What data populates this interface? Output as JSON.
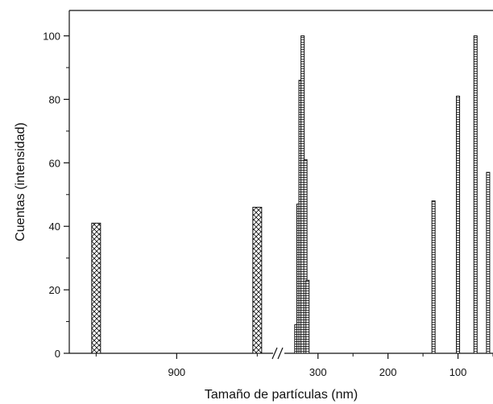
{
  "chart_data": {
    "type": "bar",
    "title": "",
    "xlabel": "Tamaño de partículas (nm)",
    "ylabel": "Cuentas (intensidad)",
    "ylim": [
      0,
      108
    ],
    "y_ticks": [
      "0",
      "20",
      "40",
      "60",
      "80",
      "100"
    ],
    "x_ticks": [
      "900",
      "300",
      "200",
      "100"
    ],
    "x_axis": "reversed, broken",
    "grid": false,
    "colors": {
      "bar_stroke": "#111111",
      "bar_fill": "#ffffff",
      "axis": "#111111"
    },
    "series": [
      {
        "segment": "left of break (hatched)",
        "x": [
          1200,
          600
        ],
        "values": [
          41,
          46
        ]
      },
      {
        "segment": "right of break (striped)",
        "x": [
          331,
          328,
          325,
          322,
          318,
          315,
          312,
          135,
          100,
          75,
          57
        ],
        "values": [
          9,
          47,
          86,
          100,
          61,
          23,
          0,
          48,
          81,
          100,
          57
        ]
      }
    ]
  }
}
